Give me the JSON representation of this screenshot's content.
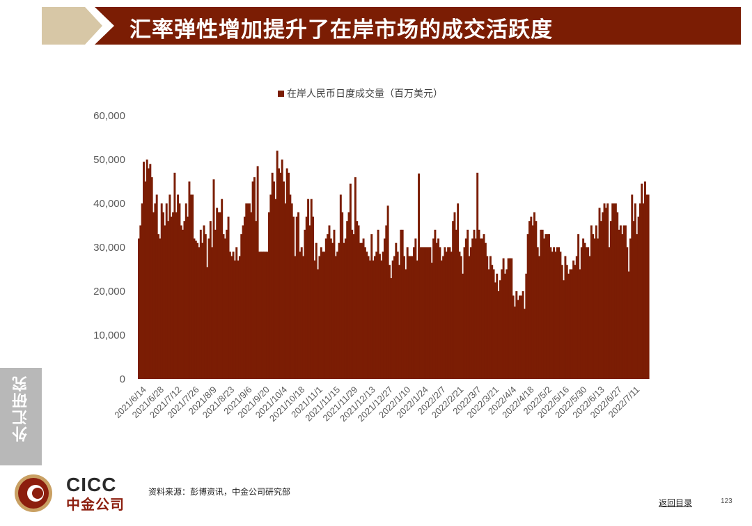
{
  "header": {
    "title": "汇率弹性增加提升了在岸市场的成交活跃度"
  },
  "colors": {
    "title_bar": "#7b1d04",
    "title_accent": "#d7c7a6",
    "bar": "#7b1d04",
    "side_tab": "#b8b8b8",
    "logo_red": "#8c1e0e"
  },
  "side_tab": {
    "label": "外汇研究"
  },
  "logo": {
    "text_en": "CICC",
    "text_cn": "中金公司"
  },
  "footer": {
    "source": "资料来源：彭博资讯，中金公司研究部",
    "back_link": "返回目录",
    "page_number": "123"
  },
  "chart_data": {
    "type": "bar",
    "title": "",
    "legend": "在岸人民币日度成交量（百万美元）",
    "legend_position": "top",
    "ylabel": "",
    "xlabel": "",
    "ylim": [
      0,
      60000
    ],
    "yticks": [
      "0",
      "10,000",
      "20,000",
      "30,000",
      "40,000",
      "50,000",
      "60,000"
    ],
    "grid": false,
    "x_tick_labels": [
      "2021/6/14",
      "2021/6/28",
      "2021/7/12",
      "2021/7/26",
      "2021/8/9",
      "2021/8/23",
      "2021/9/6",
      "2021/9/20",
      "2021/10/4",
      "2021/10/18",
      "2021/11/1",
      "2021/11/15",
      "2021/11/29",
      "2021/12/13",
      "2021/12/27",
      "2022/1/10",
      "2022/1/24",
      "2022/2/7",
      "2022/2/21",
      "2022/3/7",
      "2022/3/21",
      "2022/4/4",
      "2022/4/18",
      "2022/5/2",
      "2022/5/16",
      "2022/5/30",
      "2022/6/13",
      "2022/6/27",
      "2022/7/11"
    ],
    "values": [
      32000,
      35000,
      40000,
      49500,
      45000,
      50000,
      48000,
      49000,
      46000,
      38000,
      40000,
      42000,
      33000,
      32000,
      40000,
      38000,
      35000,
      40000,
      36000,
      42000,
      37000,
      38000,
      47000,
      38000,
      42000,
      40000,
      35000,
      34000,
      36000,
      40000,
      37000,
      45000,
      42000,
      42000,
      32000,
      31500,
      31000,
      30000,
      34000,
      31000,
      35000,
      33000,
      25500,
      32000,
      36000,
      30000,
      45500,
      34000,
      39000,
      38000,
      38000,
      41000,
      33000,
      32000,
      34000,
      37000,
      29000,
      28000,
      29000,
      27000,
      30000,
      27000,
      28000,
      33000,
      35000,
      37000,
      40000,
      40000,
      40000,
      38000,
      45000,
      46000,
      36000,
      48500,
      29000,
      29000,
      29000,
      29000,
      29000,
      29000,
      38000,
      42000,
      47000,
      45000,
      41000,
      52000,
      48000,
      47000,
      50000,
      45000,
      40000,
      48000,
      47000,
      42000,
      40000,
      37000,
      28000,
      37000,
      38000,
      29000,
      30000,
      28000,
      34000,
      37000,
      41000,
      35000,
      41000,
      37000,
      27000,
      31000,
      25000,
      28000,
      30000,
      29000,
      29000,
      32000,
      33000,
      35000,
      32000,
      31000,
      34000,
      28000,
      29000,
      31000,
      42000,
      38000,
      31000,
      32000,
      36000,
      38000,
      44500,
      34000,
      33000,
      46000,
      36000,
      35000,
      31000,
      31000,
      32000,
      30000,
      29000,
      28000,
      27000,
      33000,
      27000,
      28000,
      29000,
      34000,
      28500,
      27000,
      29000,
      32000,
      35000,
      39500,
      26000,
      23000,
      27000,
      28000,
      31000,
      29000,
      26000,
      34000,
      34000,
      28000,
      25000,
      30000,
      28000,
      28000,
      28000,
      30000,
      32000,
      27000,
      46800,
      30000,
      30000,
      30000,
      30000,
      30000,
      30000,
      30000,
      26500,
      32000,
      34000,
      31000,
      32000,
      30000,
      27000,
      28000,
      30000,
      29000,
      30000,
      30000,
      29000,
      36000,
      38000,
      34000,
      40000,
      29000,
      28000,
      24000,
      30000,
      32000,
      34000,
      28000,
      30000,
      32000,
      34000,
      32000,
      47000,
      34000,
      32000,
      32000,
      33000,
      31000,
      28000,
      25000,
      28000,
      26000,
      25000,
      22000,
      24000,
      20000,
      22500,
      25000,
      27500,
      24000,
      25000,
      27500,
      27500,
      27500,
      19000,
      16500,
      20000,
      18000,
      19000,
      19000,
      20000,
      16000,
      24000,
      33000,
      36000,
      37000,
      35000,
      38000,
      36000,
      30000,
      28000,
      34000,
      34000,
      32000,
      33000,
      33000,
      33000,
      30000,
      29000,
      30000,
      29000,
      30000,
      30000,
      29000,
      26000,
      22500,
      28000,
      26000,
      24000,
      25000,
      25000,
      27000,
      26000,
      28000,
      33000,
      25000,
      30000,
      32000,
      31000,
      30000,
      30000,
      28000,
      35000,
      33000,
      32000,
      35000,
      32000,
      39000,
      36000,
      38000,
      40000,
      39000,
      40000,
      30000,
      36000,
      40000,
      40000,
      40000,
      38000,
      34000,
      35000,
      33000,
      35000,
      35000,
      30000,
      24500,
      32000,
      42000,
      36000,
      40000,
      33000,
      37000,
      40000,
      44500,
      40000,
      45000,
      42000,
      42000
    ]
  }
}
